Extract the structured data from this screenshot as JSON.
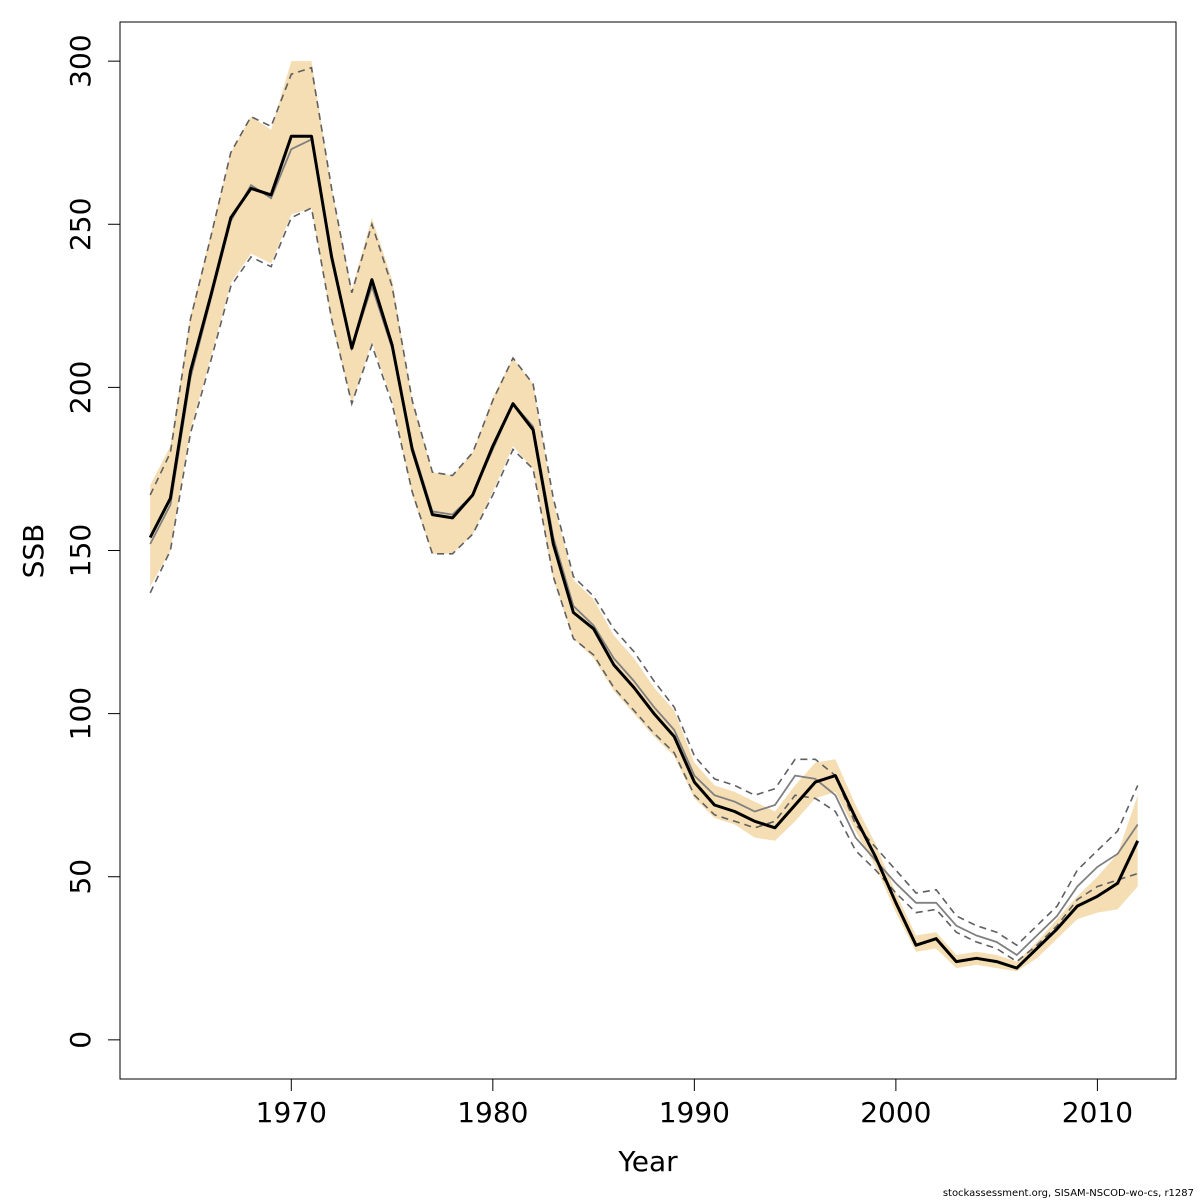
{
  "chart_data": {
    "type": "line",
    "xlabel": "Year",
    "ylabel": "SSB",
    "xlim": [
      1961.5,
      2013.9
    ],
    "ylim": [
      -12,
      312
    ],
    "x_ticks": [
      1970,
      1980,
      1990,
      2000,
      2010
    ],
    "y_ticks": [
      0,
      50,
      100,
      150,
      200,
      250,
      300
    ],
    "x_tick_labels": [
      "1970",
      "1980",
      "1990",
      "2000",
      "2010"
    ],
    "y_tick_labels": [
      "0",
      "50",
      "100",
      "150",
      "200",
      "250",
      "300"
    ],
    "grid": false,
    "footnote": "stockassessment.org, SISAM-NSCOD-wo-cs, r1287",
    "colors": {
      "band": "#f5deb3",
      "estimate": "#000000",
      "comparison": "#808080",
      "comparison_ci": "#606060"
    },
    "x": [
      1963,
      1964,
      1965,
      1966,
      1967,
      1968,
      1969,
      1970,
      1971,
      1972,
      1973,
      1974,
      1975,
      1976,
      1977,
      1978,
      1979,
      1980,
      1981,
      1982,
      1983,
      1984,
      1985,
      1986,
      1987,
      1988,
      1989,
      1990,
      1991,
      1992,
      1993,
      1994,
      1995,
      1996,
      1997,
      1998,
      1999,
      2000,
      2001,
      2002,
      2003,
      2004,
      2005,
      2006,
      2007,
      2008,
      2009,
      2010,
      2011,
      2012
    ],
    "series": [
      {
        "role": "estimate",
        "values": [
          154,
          166,
          205,
          228,
          252,
          261,
          259,
          277,
          277,
          240,
          212,
          233,
          213,
          181,
          161,
          160,
          167,
          182,
          195,
          187,
          152,
          131,
          126,
          115,
          108,
          100,
          93,
          79,
          72,
          70,
          67,
          65,
          72,
          79,
          81,
          68,
          56,
          42,
          29,
          31,
          24,
          25,
          24,
          22,
          28,
          34,
          41,
          44,
          48,
          61
        ]
      },
      {
        "role": "confidence-band",
        "lower": [
          139,
          150,
          187,
          209,
          232,
          241,
          238,
          253,
          255,
          220,
          195,
          214,
          196,
          167,
          149,
          149,
          155,
          168,
          182,
          175,
          141,
          123,
          117,
          107,
          100,
          93,
          87,
          74,
          68,
          66,
          62,
          61,
          67,
          74,
          76,
          64,
          53,
          39,
          27,
          28,
          22,
          23,
          22,
          21,
          25,
          31,
          37,
          39,
          40,
          47
        ],
        "upper": [
          170,
          182,
          222,
          247,
          272,
          283,
          279,
          300,
          300,
          261,
          230,
          252,
          233,
          196,
          174,
          173,
          180,
          197,
          209,
          201,
          165,
          141,
          135,
          124,
          117,
          108,
          101,
          85,
          78,
          76,
          73,
          70,
          78,
          85,
          86,
          72,
          60,
          45,
          32,
          33,
          26,
          27,
          26,
          24,
          30,
          37,
          44,
          50,
          57,
          75
        ]
      },
      {
        "role": "comparison",
        "values": [
          152,
          164,
          203,
          227,
          251,
          262,
          258,
          273,
          276,
          241,
          212,
          231,
          212,
          182,
          162,
          161,
          167,
          181,
          195,
          188,
          154,
          133,
          127,
          117,
          110,
          102,
          95,
          81,
          75,
          73,
          70,
          72,
          81,
          80,
          75,
          62,
          55,
          48,
          42,
          42,
          35,
          32,
          30,
          26,
          32,
          38,
          47,
          53,
          57,
          66
        ]
      },
      {
        "role": "comparison-ci",
        "lower": [
          137,
          150,
          186,
          208,
          231,
          240,
          237,
          252,
          255,
          221,
          195,
          213,
          195,
          168,
          149,
          149,
          155,
          167,
          181,
          175,
          142,
          123,
          118,
          108,
          101,
          94,
          88,
          75,
          69,
          67,
          65,
          67,
          75,
          74,
          70,
          58,
          52,
          45,
          39,
          40,
          33,
          30,
          28,
          24,
          29,
          35,
          43,
          47,
          49,
          51
        ],
        "upper": [
          167,
          180,
          221,
          246,
          272,
          283,
          280,
          296,
          298,
          261,
          229,
          250,
          231,
          196,
          174,
          173,
          180,
          196,
          209,
          201,
          166,
          142,
          136,
          126,
          119,
          110,
          102,
          87,
          80,
          78,
          75,
          77,
          86,
          86,
          81,
          66,
          59,
          52,
          45,
          46,
          38,
          35,
          33,
          29,
          35,
          41,
          52,
          58,
          64,
          78
        ]
      }
    ]
  }
}
